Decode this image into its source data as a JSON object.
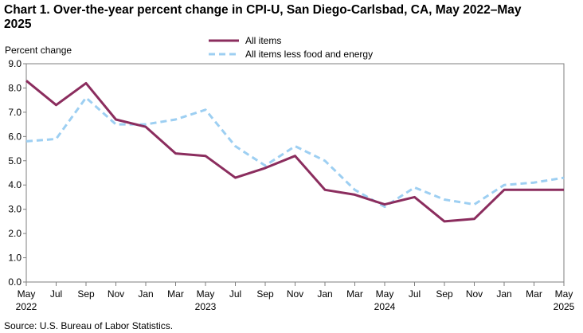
{
  "chart_data": {
    "type": "line",
    "title_line1": "Chart 1. Over-the-year percent change in CPI-U, San Diego-Carlsbad, CA, May 2022–May",
    "title_line2": "2025",
    "ylabel": "Percent change",
    "xlabel": "",
    "ylim": [
      0,
      9
    ],
    "yticks": [
      "0.0",
      "1.0",
      "2.0",
      "3.0",
      "4.0",
      "5.0",
      "6.0",
      "7.0",
      "8.0",
      "9.0"
    ],
    "grid": false,
    "legend_position": "top-center",
    "x": [
      "May 2022",
      "Jul 2022",
      "Sep 2022",
      "Nov 2022",
      "Jan 2023",
      "Mar 2023",
      "May 2023",
      "Jul 2023",
      "Sep 2023",
      "Nov 2023",
      "Jan 2024",
      "Mar 2024",
      "May 2024",
      "Jul 2024",
      "Sep 2024",
      "Nov 2024",
      "Jan 2025",
      "Mar 2025",
      "May 2025"
    ],
    "x_tick_labels": [
      "May",
      "Jul",
      "Sep",
      "Nov",
      "Jan",
      "Mar",
      "May",
      "Jul",
      "Sep",
      "Nov",
      "Jan",
      "Mar",
      "May",
      "Jul",
      "Sep",
      "Nov",
      "Jan",
      "Mar",
      "May"
    ],
    "year_labels": [
      {
        "label": "2022",
        "index": 0
      },
      {
        "label": "2023",
        "index": 6
      },
      {
        "label": "2024",
        "index": 12
      },
      {
        "label": "2025",
        "index": 18
      }
    ],
    "series": [
      {
        "name": "All items",
        "color": "#8B2D5E",
        "style": "solid",
        "values": [
          8.3,
          7.3,
          8.2,
          6.7,
          6.4,
          5.3,
          5.2,
          4.3,
          4.7,
          5.2,
          3.8,
          3.6,
          3.2,
          3.5,
          2.5,
          2.6,
          3.8,
          3.8,
          3.8
        ]
      },
      {
        "name": "All items less food and energy",
        "color": "#9DCFF2",
        "style": "dashed",
        "values": [
          5.8,
          5.9,
          7.6,
          6.5,
          6.5,
          6.7,
          7.1,
          5.6,
          4.8,
          5.6,
          5.0,
          3.8,
          3.1,
          3.9,
          3.4,
          3.2,
          4.0,
          4.1,
          4.3
        ]
      }
    ],
    "source": "Source: U.S. Bureau of Labor Statistics."
  }
}
